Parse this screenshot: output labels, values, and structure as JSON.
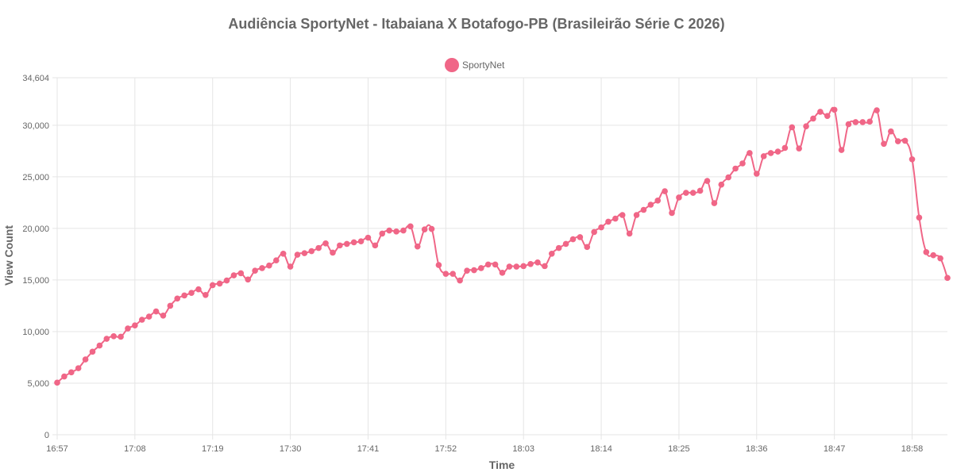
{
  "colors": {
    "series": "#f06687",
    "grid": "#e5e5e5",
    "text": "#666666"
  },
  "chart_data": {
    "type": "line",
    "title": "Audiência SportyNet - Itabaiana X Botafogo-PB (Brasileirão Série C 2026)",
    "xlabel": "Time",
    "ylabel": "View Count",
    "legend": "top-center",
    "grid": true,
    "ylim": [
      0,
      34604
    ],
    "yticks": [
      "0",
      "5,000",
      "10,000",
      "15,000",
      "20,000",
      "25,000",
      "30,000",
      "34,604"
    ],
    "yticks_values": [
      0,
      5000,
      10000,
      15000,
      20000,
      25000,
      30000,
      34604
    ],
    "xticks": [
      "16:57",
      "17:08",
      "17:19",
      "17:30",
      "17:41",
      "17:52",
      "18:03",
      "18:14",
      "18:25",
      "18:36",
      "18:47",
      "18:58"
    ],
    "xticks_index": [
      0,
      11,
      22,
      33,
      44,
      55,
      66,
      77,
      88,
      99,
      110,
      121
    ],
    "series": [
      {
        "name": "SportyNet",
        "values": [
          5050,
          5650,
          6050,
          6450,
          7300,
          8050,
          8650,
          9300,
          9550,
          9500,
          10300,
          10600,
          11150,
          11450,
          11950,
          11550,
          12500,
          13200,
          13500,
          13750,
          14100,
          13550,
          14500,
          14650,
          14950,
          15450,
          15650,
          15050,
          15900,
          16150,
          16400,
          16900,
          17550,
          16300,
          17450,
          17600,
          17800,
          18100,
          18550,
          17650,
          18350,
          18500,
          18650,
          18750,
          19100,
          18350,
          19500,
          19800,
          19700,
          19800,
          20200,
          18250,
          19900,
          19950,
          16450,
          15600,
          15600,
          14950,
          15900,
          15950,
          16150,
          16500,
          16500,
          15700,
          16300,
          16300,
          16350,
          16550,
          16700,
          16350,
          17550,
          18100,
          18500,
          18950,
          19150,
          18200,
          19650,
          20100,
          20650,
          20950,
          21300,
          19500,
          21300,
          21800,
          22300,
          22700,
          23600,
          21500,
          23000,
          23450,
          23450,
          23650,
          24600,
          22450,
          24250,
          24950,
          25800,
          26300,
          27300,
          25300,
          27000,
          27300,
          27450,
          27800,
          29800,
          27750,
          29900,
          30650,
          31300,
          30900,
          31500,
          27600,
          30100,
          30300,
          30300,
          30350,
          31450,
          28200,
          29400,
          28450,
          28500,
          26700,
          21050,
          17700,
          17400,
          17100,
          15200
        ]
      }
    ]
  }
}
